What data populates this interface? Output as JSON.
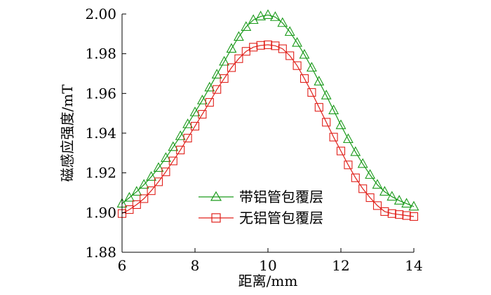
{
  "chart_data": {
    "type": "line",
    "xlabel": "距离/mm",
    "ylabel": "磁感应强度/mT",
    "xlim": [
      6,
      14
    ],
    "ylim": [
      1.88,
      2.0
    ],
    "xticks": [
      "6",
      "8",
      "10",
      "12",
      "14"
    ],
    "yticks": [
      "1.88",
      "1.90",
      "1.92",
      "1.94",
      "1.96",
      "1.98",
      "2.00"
    ],
    "grid": false,
    "legend_position": "lower-center",
    "series": [
      {
        "name": "带铝管包覆层",
        "color": "#1a9a1a",
        "marker": "triangle",
        "x": [
          6.0,
          6.2,
          6.4,
          6.6,
          6.8,
          7.0,
          7.2,
          7.4,
          7.6,
          7.8,
          8.0,
          8.2,
          8.4,
          8.6,
          8.8,
          9.0,
          9.2,
          9.4,
          9.6,
          9.8,
          10.0,
          10.2,
          10.4,
          10.6,
          10.8,
          11.0,
          11.2,
          11.4,
          11.6,
          11.8,
          12.0,
          12.2,
          12.4,
          12.6,
          12.8,
          13.0,
          13.2,
          13.4,
          13.6,
          13.8,
          14.0
        ],
        "values": [
          1.9045,
          1.9075,
          1.9105,
          1.914,
          1.918,
          1.9225,
          1.9275,
          1.933,
          1.9385,
          1.9445,
          1.9505,
          1.9565,
          1.963,
          1.9695,
          1.976,
          1.9825,
          1.9885,
          1.9935,
          1.997,
          1.9988,
          1.9995,
          1.9985,
          1.9955,
          1.991,
          1.9855,
          1.9795,
          1.973,
          1.966,
          1.959,
          1.9515,
          1.944,
          1.937,
          1.9305,
          1.9245,
          1.919,
          1.914,
          1.9105,
          1.908,
          1.906,
          1.9045,
          1.903
        ]
      },
      {
        "name": "无铝管包覆层",
        "color": "#e0201a",
        "marker": "square",
        "x": [
          6.0,
          6.2,
          6.4,
          6.6,
          6.8,
          7.0,
          7.2,
          7.4,
          7.6,
          7.8,
          8.0,
          8.2,
          8.4,
          8.6,
          8.8,
          9.0,
          9.2,
          9.4,
          9.6,
          9.8,
          10.0,
          10.2,
          10.4,
          10.6,
          10.8,
          11.0,
          11.2,
          11.4,
          11.6,
          11.8,
          12.0,
          12.2,
          12.4,
          12.6,
          12.8,
          13.0,
          13.2,
          13.4,
          13.6,
          13.8,
          14.0
        ],
        "values": [
          1.8995,
          1.9015,
          1.904,
          1.907,
          1.911,
          1.9155,
          1.9205,
          1.926,
          1.9315,
          1.9375,
          1.9435,
          1.9495,
          1.9555,
          1.962,
          1.9675,
          1.973,
          1.9775,
          1.9812,
          1.9833,
          1.9842,
          1.9845,
          1.984,
          1.9825,
          1.979,
          1.974,
          1.9675,
          1.9605,
          1.953,
          1.9455,
          1.938,
          1.931,
          1.924,
          1.9175,
          1.912,
          1.9075,
          1.9035,
          1.9005,
          1.8995,
          1.899,
          1.8985,
          1.898
        ]
      }
    ]
  }
}
